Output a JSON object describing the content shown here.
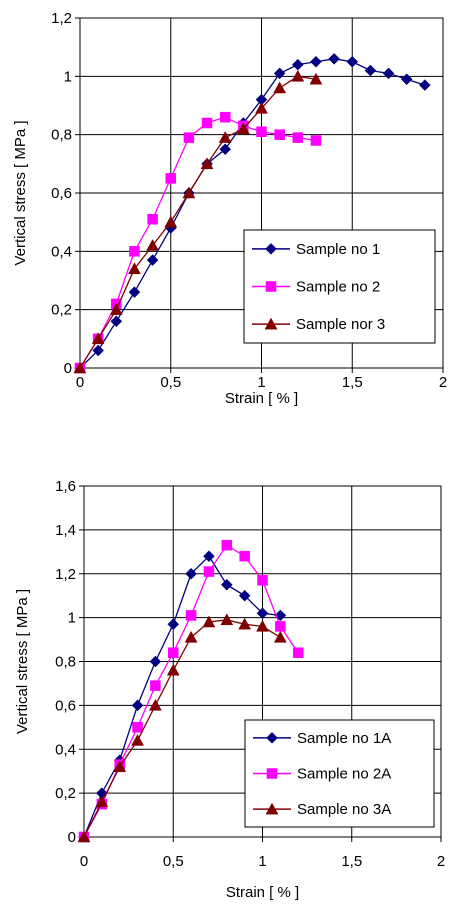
{
  "chart_data": [
    {
      "type": "line",
      "xlabel": "Strain [ % ]",
      "ylabel": "Vertical stress [ MPa ]",
      "xlim": [
        0,
        2
      ],
      "ylim": [
        0,
        1.2
      ],
      "x_ticks": [
        0,
        0.5,
        1,
        1.5,
        2
      ],
      "x_tick_labels": [
        "0",
        "0,5",
        "1",
        "1,5",
        "2"
      ],
      "y_ticks": [
        0,
        0.2,
        0.4,
        0.6,
        0.8,
        1.0,
        1.2
      ],
      "y_tick_labels": [
        "0",
        "0,2",
        "0,4",
        "0,6",
        "0,8",
        "1",
        "1,2"
      ],
      "grid": true,
      "legend_position": "bottom-right",
      "series": [
        {
          "name": "Sample no 1",
          "color": "#000080",
          "marker": "diamond",
          "x": [
            0,
            0.1,
            0.2,
            0.3,
            0.4,
            0.5,
            0.6,
            0.7,
            0.8,
            0.9,
            1.0,
            1.1,
            1.2,
            1.3,
            1.4,
            1.5,
            1.6,
            1.7,
            1.8,
            1.9
          ],
          "y": [
            0,
            0.06,
            0.16,
            0.26,
            0.37,
            0.48,
            0.6,
            0.7,
            0.75,
            0.84,
            0.92,
            1.01,
            1.04,
            1.05,
            1.06,
            1.05,
            1.02,
            1.01,
            0.99,
            0.97
          ]
        },
        {
          "name": "Sample no 2",
          "color": "#ff00ff",
          "marker": "square",
          "x": [
            0,
            0.1,
            0.2,
            0.3,
            0.4,
            0.5,
            0.6,
            0.7,
            0.8,
            0.9,
            1.0,
            1.1,
            1.2,
            1.3
          ],
          "y": [
            0,
            0.1,
            0.22,
            0.4,
            0.51,
            0.65,
            0.79,
            0.84,
            0.86,
            0.83,
            0.81,
            0.8,
            0.79,
            0.78
          ]
        },
        {
          "name": "Sample nor 3",
          "color": "#800000",
          "marker": "triangle",
          "x": [
            0,
            0.1,
            0.2,
            0.3,
            0.4,
            0.5,
            0.6,
            0.7,
            0.8,
            0.9,
            1.0,
            1.1,
            1.2,
            1.3
          ],
          "y": [
            0,
            0.1,
            0.2,
            0.34,
            0.42,
            0.5,
            0.6,
            0.7,
            0.79,
            0.82,
            0.89,
            0.96,
            1.0,
            0.99
          ]
        }
      ]
    },
    {
      "type": "line",
      "xlabel": "Strain [ % ]",
      "ylabel": "Vertical stress [ MPa ]",
      "xlim": [
        0,
        2
      ],
      "ylim": [
        0,
        1.6
      ],
      "x_ticks": [
        0,
        0.5,
        1,
        1.5,
        2
      ],
      "x_tick_labels": [
        "0",
        "0,5",
        "1",
        "1,5",
        "2"
      ],
      "y_ticks": [
        0,
        0.2,
        0.4,
        0.6,
        0.8,
        1.0,
        1.2,
        1.4,
        1.6
      ],
      "y_tick_labels": [
        "0",
        "0,2",
        "0,4",
        "0,6",
        "0,8",
        "1",
        "1,2",
        "1,4",
        "1,6"
      ],
      "grid": true,
      "legend_position": "bottom-right",
      "series": [
        {
          "name": "Sample no 1A",
          "color": "#000080",
          "marker": "diamond",
          "x": [
            0,
            0.1,
            0.2,
            0.3,
            0.4,
            0.5,
            0.6,
            0.7,
            0.8,
            0.9,
            1.0,
            1.1
          ],
          "y": [
            0,
            0.2,
            0.35,
            0.6,
            0.8,
            0.97,
            1.2,
            1.28,
            1.15,
            1.1,
            1.02,
            1.01
          ]
        },
        {
          "name": "Sample no 2A",
          "color": "#ff00ff",
          "marker": "square",
          "x": [
            0,
            0.1,
            0.2,
            0.3,
            0.4,
            0.5,
            0.6,
            0.7,
            0.8,
            0.9,
            1.0,
            1.1,
            1.2
          ],
          "y": [
            0,
            0.15,
            0.33,
            0.5,
            0.69,
            0.84,
            1.01,
            1.21,
            1.33,
            1.28,
            1.17,
            0.96,
            0.84
          ]
        },
        {
          "name": "Sample no 3A",
          "color": "#800000",
          "marker": "triangle",
          "x": [
            0,
            0.1,
            0.2,
            0.3,
            0.4,
            0.5,
            0.6,
            0.7,
            0.8,
            0.9,
            1.0,
            1.1
          ],
          "y": [
            0,
            0.16,
            0.32,
            0.44,
            0.6,
            0.76,
            0.91,
            0.98,
            0.99,
            0.97,
            0.96,
            0.91
          ]
        }
      ]
    }
  ]
}
